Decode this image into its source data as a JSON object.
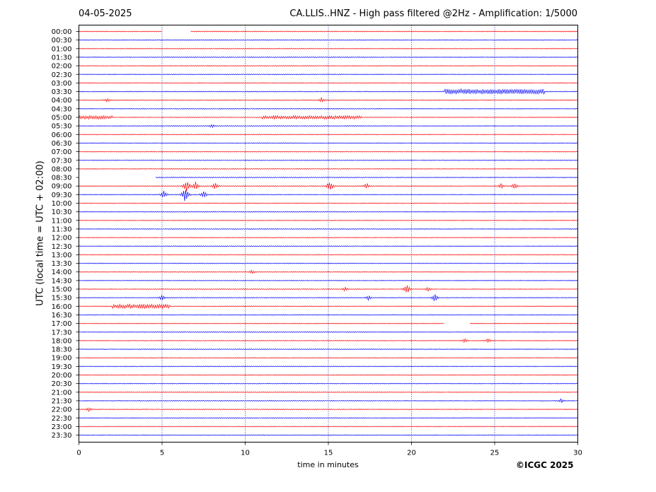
{
  "header": {
    "date": "04-05-2025",
    "title": "CA.LLIS..HNZ - High pass filtered @2Hz - Amplification: 1/5000"
  },
  "footer": {
    "copyright": "©ICGC 2025"
  },
  "chart_data": {
    "type": "line",
    "title": "CA.LLIS..HNZ - High pass filtered @2Hz - Amplification: 1/5000",
    "xlabel": "time in minutes",
    "ylabel": "UTC (local time = UTC + 02:00)",
    "xlim": [
      0,
      30
    ],
    "xticks": [
      0,
      5,
      10,
      15,
      20,
      25,
      30
    ],
    "vgrid_minutes": [
      5,
      10,
      15,
      20,
      25
    ],
    "grid": "dotted vertical lines every 5 minutes",
    "colors": {
      "even": "#ff0000",
      "odd": "#0000ff"
    },
    "row_labels": [
      "00:00",
      "00:30",
      "01:00",
      "01:30",
      "02:00",
      "02:30",
      "03:00",
      "03:30",
      "04:00",
      "04:30",
      "05:00",
      "05:30",
      "06:00",
      "06:30",
      "07:00",
      "07:30",
      "08:00",
      "08:30",
      "09:00",
      "09:30",
      "10:00",
      "10:30",
      "11:00",
      "11:30",
      "12:00",
      "12:30",
      "13:00",
      "13:30",
      "14:00",
      "14:30",
      "15:00",
      "15:30",
      "16:00",
      "16:30",
      "17:00",
      "17:30",
      "18:00",
      "18:30",
      "19:00",
      "19:30",
      "20:00",
      "20:30",
      "21:00",
      "21:30",
      "22:00",
      "22:30",
      "23:00",
      "23:30"
    ],
    "gaps": [
      {
        "row": "00:00",
        "x": [
          5.0,
          6.7
        ]
      },
      {
        "row": "08:30",
        "x": [
          0.0,
          4.6
        ]
      },
      {
        "row": "17:00",
        "x": [
          22.0,
          23.5
        ]
      }
    ],
    "events": [
      {
        "row": "03:30",
        "x": [
          22.0,
          28.0
        ],
        "amp": 0.3
      },
      {
        "row": "04:00",
        "x": 1.7,
        "amp": 0.3
      },
      {
        "row": "04:00",
        "x": 14.6,
        "amp": 0.35
      },
      {
        "row": "05:00",
        "x": [
          0.0,
          2.0
        ],
        "amp": 0.2
      },
      {
        "row": "05:00",
        "x": [
          11.0,
          17.0
        ],
        "amp": 0.2
      },
      {
        "row": "05:30",
        "x": 8.0,
        "amp": 0.25
      },
      {
        "row": "09:00",
        "x": 6.5,
        "amp": 0.9
      },
      {
        "row": "09:00",
        "x": 7.0,
        "amp": 0.6
      },
      {
        "row": "09:00",
        "x": 8.2,
        "amp": 0.5
      },
      {
        "row": "09:00",
        "x": 15.1,
        "amp": 0.7
      },
      {
        "row": "09:00",
        "x": 17.3,
        "amp": 0.4
      },
      {
        "row": "09:00",
        "x": 25.4,
        "amp": 0.4
      },
      {
        "row": "09:00",
        "x": 26.2,
        "amp": 0.4
      },
      {
        "row": "09:30",
        "x": 5.1,
        "amp": 0.5
      },
      {
        "row": "09:30",
        "x": 6.4,
        "amp": 1.0
      },
      {
        "row": "09:30",
        "x": 7.5,
        "amp": 0.5
      },
      {
        "row": "14:00",
        "x": 10.4,
        "amp": 0.3
      },
      {
        "row": "15:00",
        "x": 16.0,
        "amp": 0.3
      },
      {
        "row": "15:00",
        "x": 19.7,
        "amp": 0.7
      },
      {
        "row": "15:00",
        "x": 21.0,
        "amp": 0.3
      },
      {
        "row": "15:30",
        "x": 5.0,
        "amp": 0.4
      },
      {
        "row": "15:30",
        "x": 17.4,
        "amp": 0.3
      },
      {
        "row": "15:30",
        "x": 21.4,
        "amp": 0.5
      },
      {
        "row": "16:00",
        "x": [
          2.0,
          5.5
        ],
        "amp": 0.25
      },
      {
        "row": "18:00",
        "x": 23.2,
        "amp": 0.3
      },
      {
        "row": "18:00",
        "x": 24.6,
        "amp": 0.3
      },
      {
        "row": "21:30",
        "x": 29.0,
        "amp": 0.3
      },
      {
        "row": "22:00",
        "x": 0.6,
        "amp": 0.3
      }
    ]
  }
}
